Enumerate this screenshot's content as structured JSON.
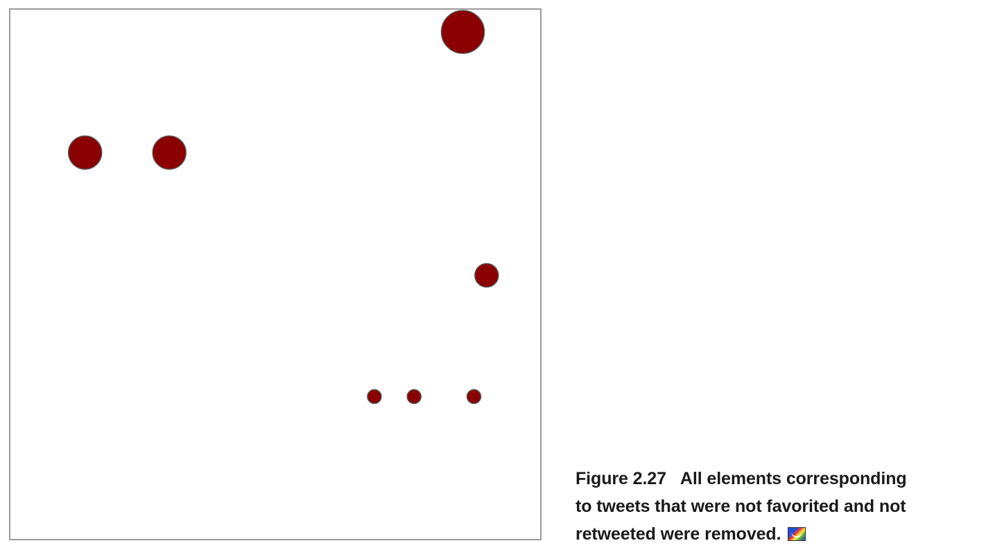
{
  "caption": {
    "number": "Figure 2.27",
    "line1": "All elements corresponding",
    "line2": "to tweets that were not favorited and not",
    "line3": "retweeted were removed."
  },
  "colors": {
    "circle_fill": "#8b0000",
    "circle_stroke": "#555555",
    "frame_border": "#9a9a9a",
    "caption_text": "#1a1a1a"
  },
  "icons": {
    "caption_icon": "live-book-icon"
  },
  "chart_data": {
    "type": "scatter",
    "title": "",
    "xlabel": "",
    "ylabel": "",
    "xlim": [
      0,
      100
    ],
    "ylim": [
      0,
      100
    ],
    "grid": false,
    "legend": "none",
    "points": [
      {
        "x": 85.4,
        "y": 95.8,
        "size": 31
      },
      {
        "x": 14.1,
        "y": 73.0,
        "size": 24
      },
      {
        "x": 30.0,
        "y": 73.0,
        "size": 24
      },
      {
        "x": 89.9,
        "y": 49.8,
        "size": 17
      },
      {
        "x": 68.7,
        "y": 26.9,
        "size": 10
      },
      {
        "x": 76.2,
        "y": 26.9,
        "size": 10
      },
      {
        "x": 87.5,
        "y": 26.9,
        "size": 10
      }
    ]
  }
}
